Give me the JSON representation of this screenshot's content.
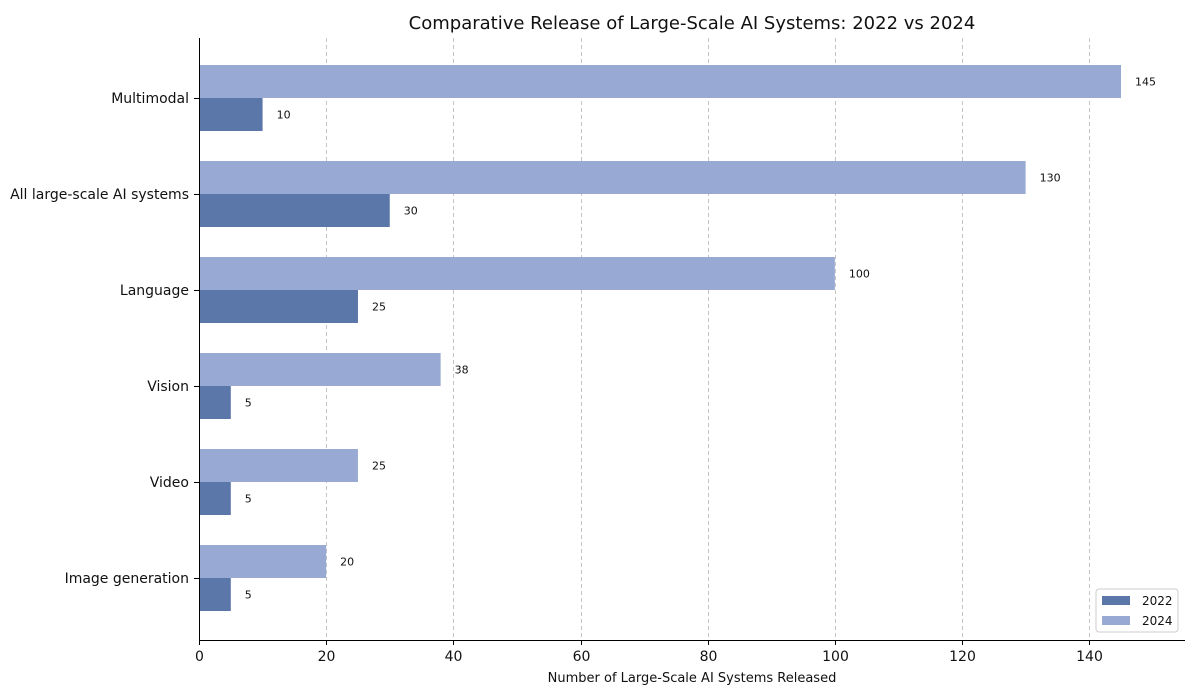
{
  "chart_data": {
    "type": "bar",
    "orientation": "horizontal",
    "title": "Comparative Release of Large-Scale AI Systems: 2022 vs 2024",
    "xlabel": "Number of Large-Scale AI Systems Released",
    "ylabel": "",
    "categories": [
      "Multimodal",
      "All large-scale AI systems",
      "Language",
      "Vision",
      "Video",
      "Image generation"
    ],
    "series": [
      {
        "name": "2022",
        "values": [
          10,
          30,
          25,
          5,
          5,
          5
        ],
        "color": "#5b76a8"
      },
      {
        "name": "2024",
        "values": [
          145,
          130,
          100,
          38,
          25,
          20
        ],
        "color": "#98a9d4"
      }
    ],
    "xlim": [
      0,
      155
    ],
    "xticks": [
      0,
      20,
      40,
      60,
      80,
      100,
      120,
      140
    ],
    "grid": "x-dashed",
    "legend": "bottom-right"
  }
}
